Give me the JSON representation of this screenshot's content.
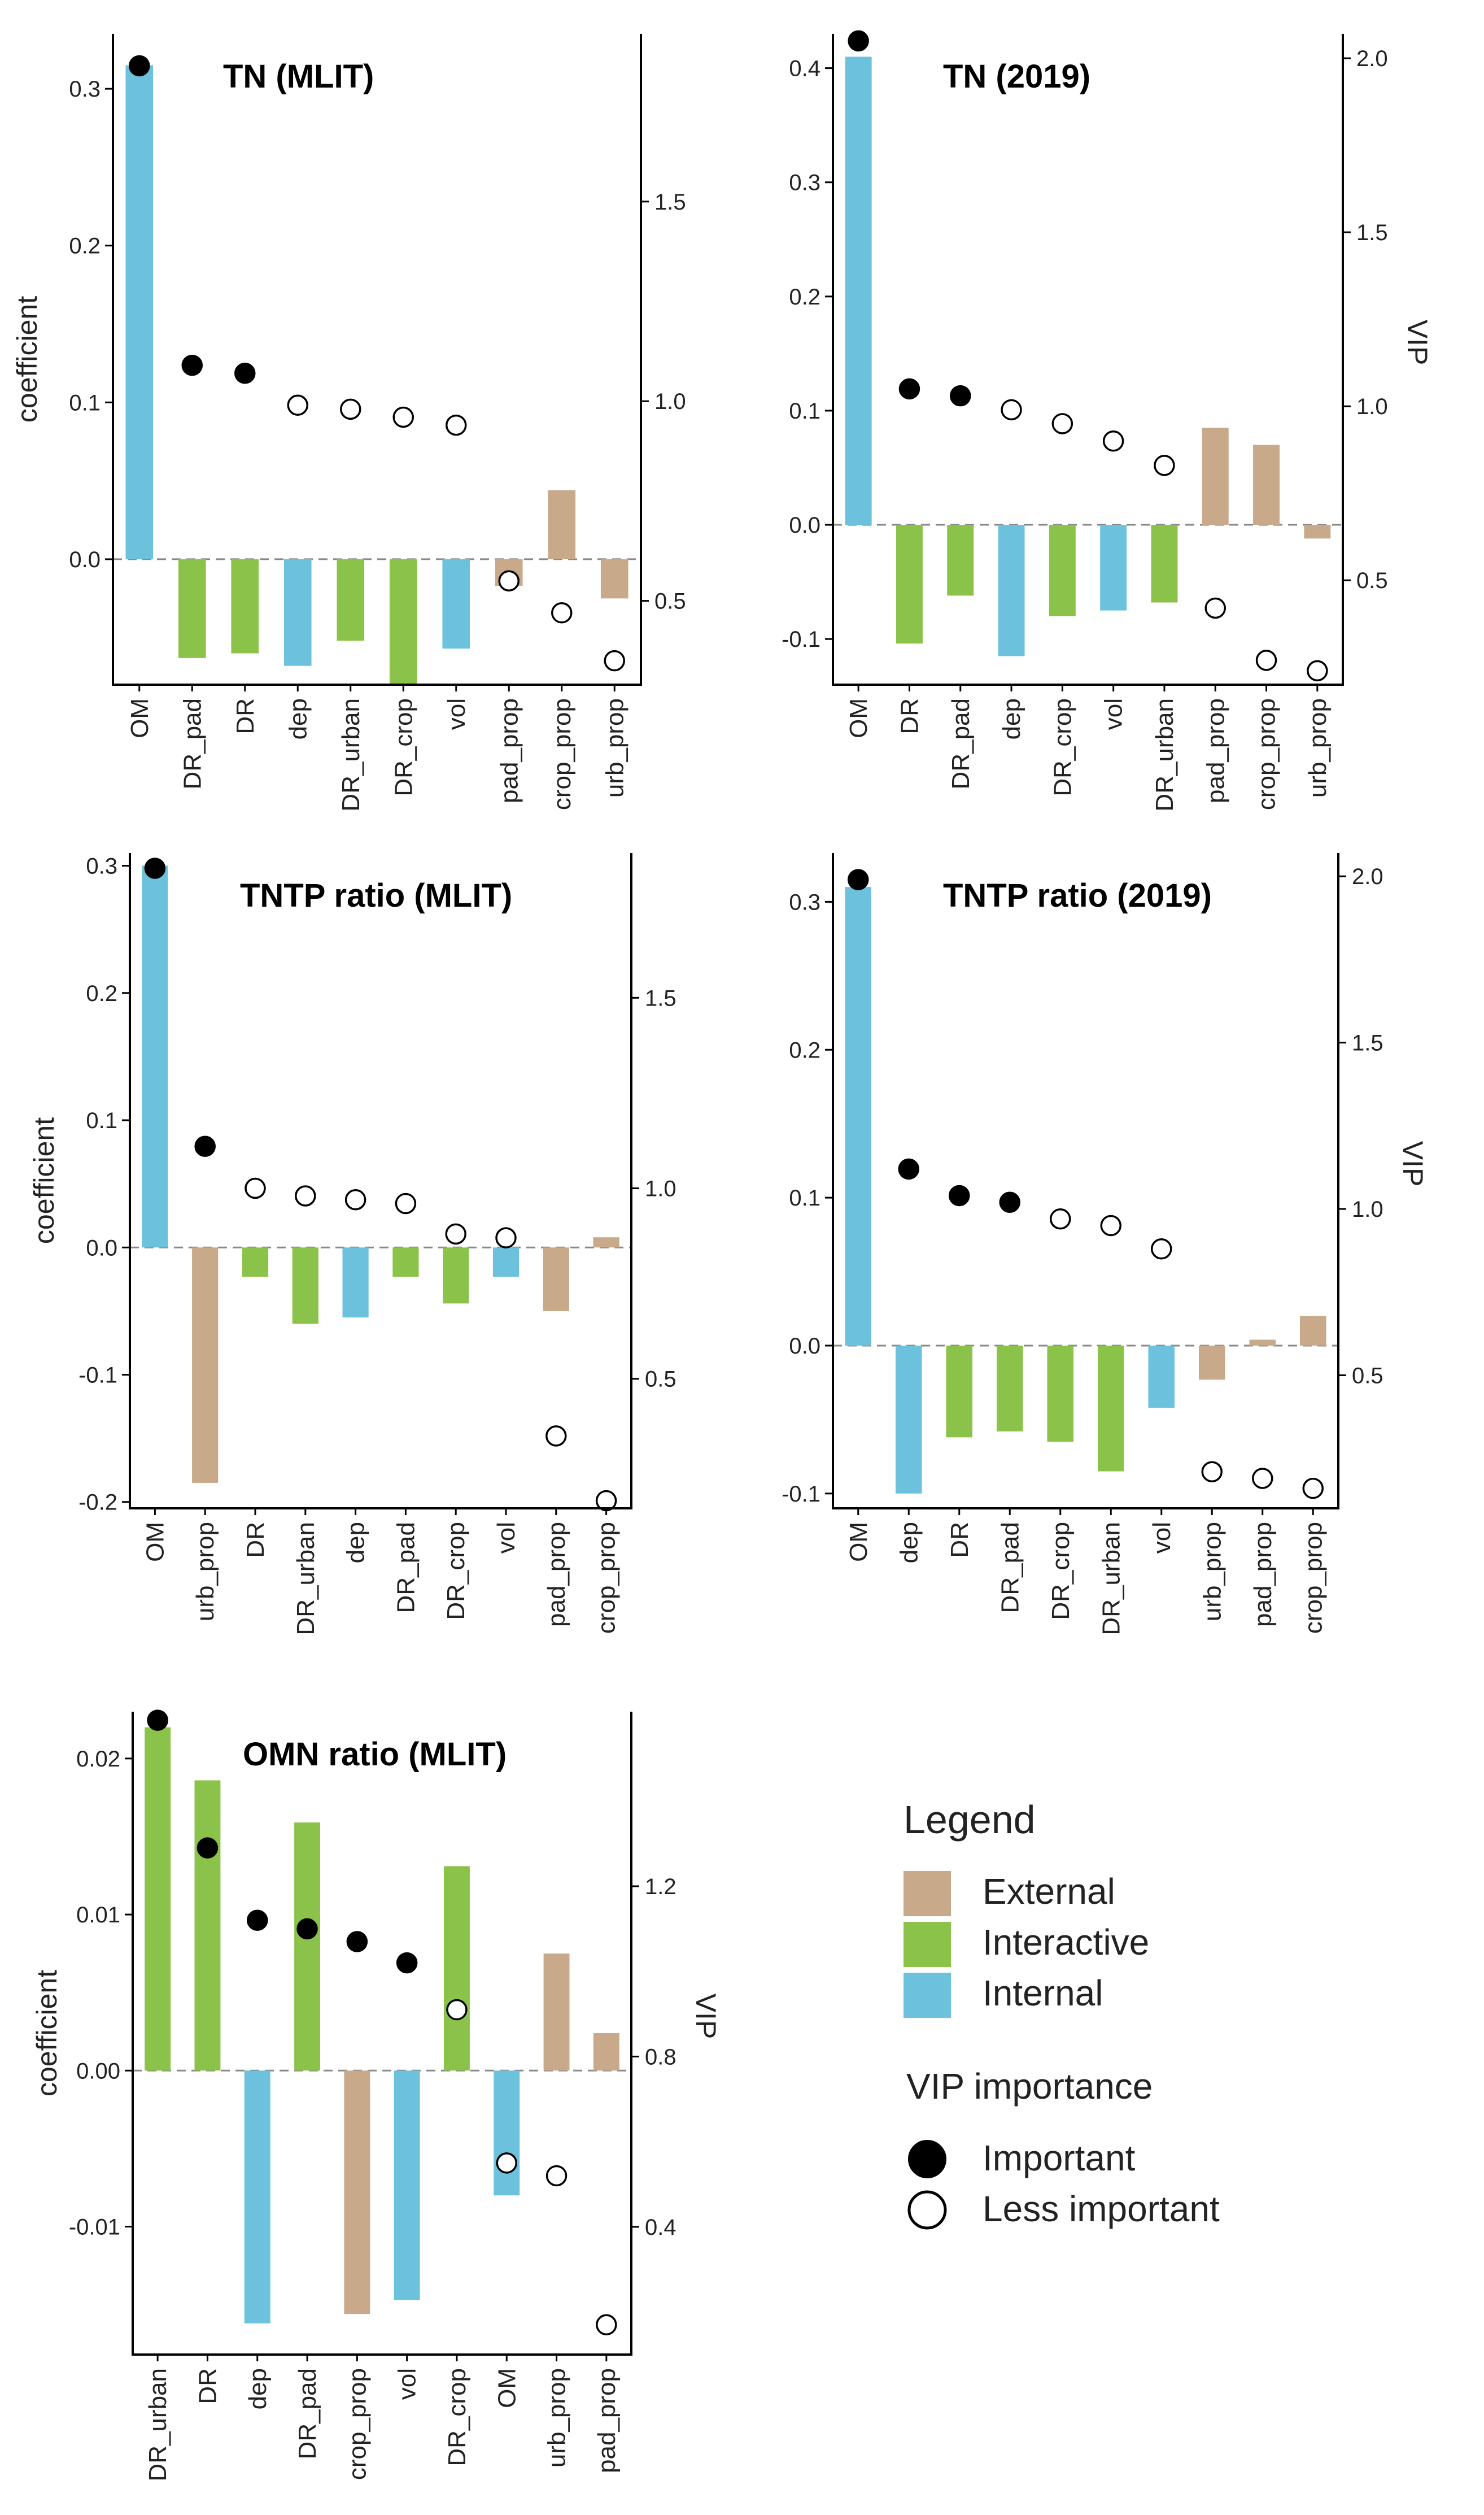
{
  "colors": {
    "External": "#c8a98a",
    "Interactive": "#8bc34a",
    "Internal": "#6cc2dc",
    "axis": "#000000",
    "zero_line": "#888888"
  },
  "chart_data": [
    {
      "type": "bar",
      "title": "TN (MLIT)",
      "ylabel": "coefficient",
      "y2label": "",
      "ylim": [
        -0.08,
        0.335
      ],
      "yticks": [
        0.0,
        0.1,
        0.2,
        0.3
      ],
      "ytick_labels": [
        "0.0",
        "0.1",
        "0.2",
        "0.3"
      ],
      "y2lim": [
        0.29,
        1.92
      ],
      "y2ticks": [
        0.5,
        1.0,
        1.5
      ],
      "y2tick_labels": [
        "0.5",
        "1.0",
        "1.5"
      ],
      "categories": [
        "OM",
        "DR_pad",
        "DR",
        "dep",
        "DR_urban",
        "DR_crop",
        "vol",
        "pad_prop",
        "crop_prop",
        "urb_prop"
      ],
      "groups": [
        "Internal",
        "Interactive",
        "Interactive",
        "Internal",
        "Interactive",
        "Interactive",
        "Internal",
        "External",
        "External",
        "External"
      ],
      "coefficients": [
        0.315,
        -0.063,
        -0.06,
        -0.068,
        -0.052,
        -0.08,
        -0.057,
        -0.017,
        0.044,
        -0.025
      ],
      "vip": [
        1.84,
        1.09,
        1.07,
        0.99,
        0.98,
        0.96,
        0.94,
        0.55,
        0.47,
        0.35
      ],
      "important": [
        true,
        true,
        true,
        false,
        false,
        false,
        false,
        false,
        false,
        false
      ]
    },
    {
      "type": "bar",
      "title": "TN (2019)",
      "ylabel": "",
      "y2label": "VIP",
      "ylim": [
        -0.14,
        0.43
      ],
      "yticks": [
        -0.1,
        0.0,
        0.1,
        0.2,
        0.3,
        0.4
      ],
      "ytick_labels": [
        "-0.1",
        "0.0",
        "0.1",
        "0.2",
        "0.3",
        "0.4"
      ],
      "y2lim": [
        0.2,
        2.07
      ],
      "y2ticks": [
        0.5,
        1.0,
        1.5,
        2.0
      ],
      "y2tick_labels": [
        "0.5",
        "1.0",
        "1.5",
        "2.0"
      ],
      "categories": [
        "OM",
        "DR",
        "DR_pad",
        "dep",
        "DR_crop",
        "vol",
        "DR_urban",
        "pad_prop",
        "crop_prop",
        "urb_prop"
      ],
      "groups": [
        "Internal",
        "Interactive",
        "Interactive",
        "Internal",
        "Interactive",
        "Internal",
        "Interactive",
        "External",
        "External",
        "External"
      ],
      "coefficients": [
        0.41,
        -0.104,
        -0.062,
        -0.115,
        -0.08,
        -0.075,
        -0.068,
        0.085,
        0.07,
        -0.012
      ],
      "vip": [
        2.05,
        1.05,
        1.03,
        0.99,
        0.95,
        0.9,
        0.83,
        0.42,
        0.27,
        0.24
      ],
      "important": [
        true,
        true,
        true,
        false,
        false,
        false,
        false,
        false,
        false,
        false
      ]
    },
    {
      "type": "bar",
      "title": "TNTP ratio (MLIT)",
      "ylabel": "coefficient",
      "y2label": "",
      "ylim": [
        -0.205,
        0.31
      ],
      "yticks": [
        -0.2,
        -0.1,
        0.0,
        0.1,
        0.2,
        0.3
      ],
      "ytick_labels": [
        "-0.2",
        "-0.1",
        "0.0",
        "0.1",
        "0.2",
        "0.3"
      ],
      "y2lim": [
        0.16,
        1.88
      ],
      "y2ticks": [
        0.5,
        1.0,
        1.5
      ],
      "y2tick_labels": [
        "0.5",
        "1.0",
        "1.5"
      ],
      "categories": [
        "OM",
        "urb_prop",
        "DR",
        "DR_urban",
        "dep",
        "DR_pad",
        "DR_crop",
        "vol",
        "pad_prop",
        "crop_prop"
      ],
      "groups": [
        "Internal",
        "External",
        "Interactive",
        "Interactive",
        "Internal",
        "Interactive",
        "Interactive",
        "Internal",
        "External",
        "External"
      ],
      "coefficients": [
        0.3,
        -0.185,
        -0.023,
        -0.06,
        -0.055,
        -0.023,
        -0.044,
        -0.023,
        -0.05,
        0.008
      ],
      "vip": [
        1.84,
        1.11,
        1.0,
        0.98,
        0.97,
        0.96,
        0.88,
        0.87,
        0.35,
        0.18
      ],
      "important": [
        true,
        true,
        false,
        false,
        false,
        false,
        false,
        false,
        false,
        false
      ]
    },
    {
      "type": "bar",
      "title": "TNTP ratio (2019)",
      "ylabel": "",
      "y2label": "VIP",
      "ylim": [
        -0.11,
        0.333
      ],
      "yticks": [
        -0.1,
        0.0,
        0.1,
        0.2,
        0.3
      ],
      "ytick_labels": [
        "-0.1",
        "0.0",
        "0.1",
        "0.2",
        "0.3"
      ],
      "y2lim": [
        0.1,
        2.07
      ],
      "y2ticks": [
        0.5,
        1.0,
        1.5,
        2.0
      ],
      "y2tick_labels": [
        "0.5",
        "1.0",
        "1.5",
        "2.0"
      ],
      "categories": [
        "OM",
        "dep",
        "DR",
        "DR_pad",
        "DR_crop",
        "DR_urban",
        "vol",
        "urb_prop",
        "pad_prop",
        "crop_prop"
      ],
      "groups": [
        "Internal",
        "Internal",
        "Interactive",
        "Interactive",
        "Interactive",
        "Interactive",
        "Internal",
        "External",
        "External",
        "External"
      ],
      "coefficients": [
        0.31,
        -0.1,
        -0.062,
        -0.058,
        -0.065,
        -0.085,
        -0.042,
        -0.023,
        0.004,
        0.02
      ],
      "vip": [
        1.99,
        1.12,
        1.04,
        1.02,
        0.97,
        0.95,
        0.88,
        0.21,
        0.19,
        0.16
      ],
      "important": [
        true,
        true,
        true,
        true,
        false,
        false,
        false,
        false,
        false,
        false
      ]
    },
    {
      "type": "bar",
      "title": "OMN ratio (MLIT)",
      "ylabel": "coefficient",
      "y2label": "VIP",
      "ylim": [
        -0.0182,
        0.023
      ],
      "yticks": [
        -0.01,
        0.0,
        0.01,
        0.02
      ],
      "ytick_labels": [
        "-0.01",
        "0.00",
        "0.01",
        "0.02"
      ],
      "y2lim": [
        0.1,
        1.61
      ],
      "y2ticks": [
        0.4,
        0.8,
        1.2
      ],
      "y2tick_labels": [
        "0.4",
        "0.8",
        "1.2"
      ],
      "categories": [
        "DR_urban",
        "DR",
        "dep",
        "DR_pad",
        "crop_prop",
        "vol",
        "DR_crop",
        "OM",
        "urb_prop",
        "pad_prop"
      ],
      "groups": [
        "Interactive",
        "Interactive",
        "Internal",
        "Interactive",
        "External",
        "Internal",
        "Interactive",
        "Internal",
        "External",
        "External"
      ],
      "coefficients": [
        0.022,
        0.0186,
        -0.0162,
        0.0159,
        -0.0156,
        -0.0147,
        0.0131,
        -0.008,
        0.0075,
        0.0024
      ],
      "vip": [
        1.59,
        1.29,
        1.12,
        1.1,
        1.07,
        1.02,
        0.91,
        0.55,
        0.52,
        0.17
      ],
      "important": [
        true,
        true,
        true,
        true,
        true,
        true,
        false,
        false,
        false,
        false
      ]
    }
  ],
  "legend": {
    "title": "Legend",
    "items": [
      {
        "label": "External",
        "group": "External"
      },
      {
        "label": "Interactive",
        "group": "Interactive"
      },
      {
        "label": "Internal",
        "group": "Internal"
      }
    ],
    "vip_title": "VIP importance",
    "vip_items": [
      {
        "label": "Important",
        "filled": true
      },
      {
        "label": "Less important",
        "filled": false
      }
    ]
  }
}
